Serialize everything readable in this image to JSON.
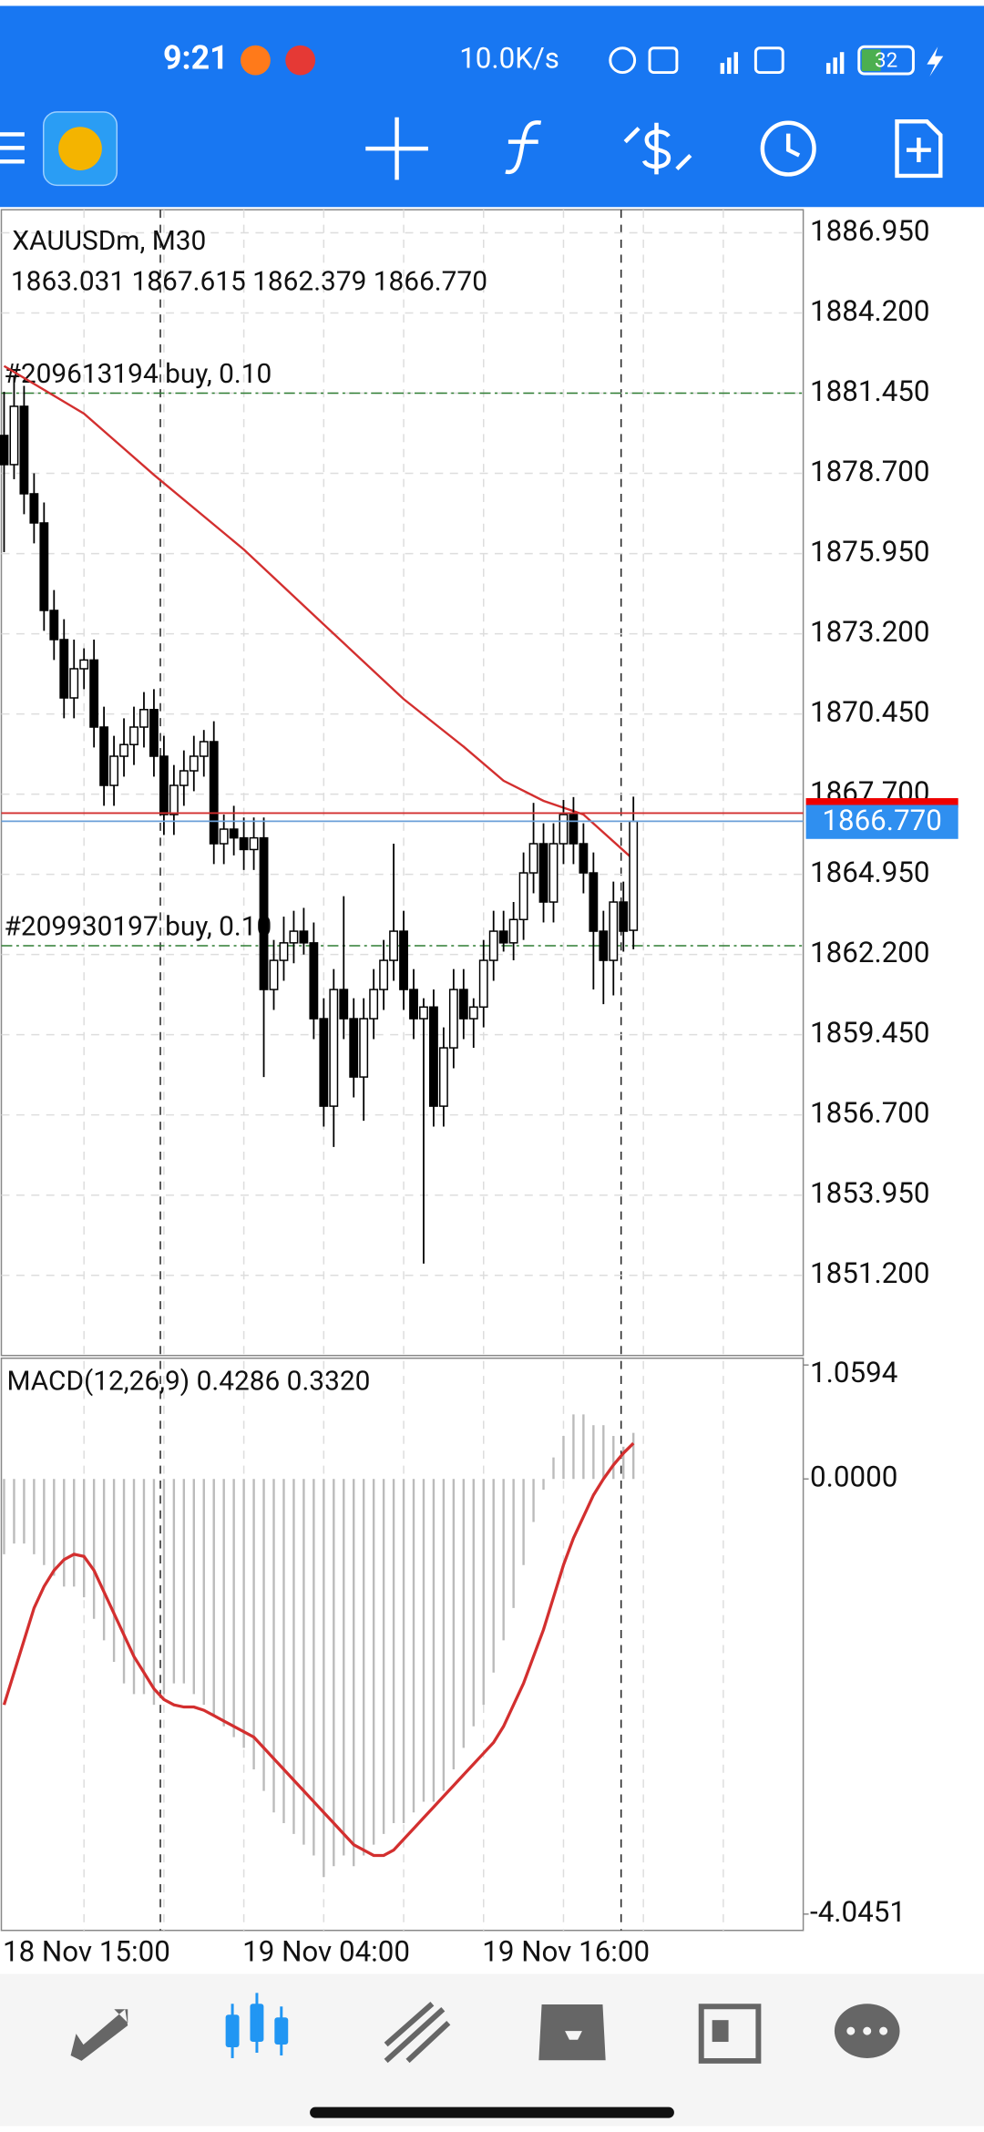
{
  "status_bar": {
    "time": "9:21",
    "speed": "10.0K/s",
    "battery": "32"
  },
  "chart": {
    "symbol": "XAUUSDm, M30",
    "ohlc_label": "1863.031 1867.615 1862.379 1866.770",
    "price_axis": {
      "ylim": [
        1848.45,
        1887.74
      ],
      "ticks": [
        {
          "value": 1886.95,
          "label": "1886.950"
        },
        {
          "value": 1884.2,
          "label": "1884.200"
        },
        {
          "value": 1881.45,
          "label": "1881.450"
        },
        {
          "value": 1878.7,
          "label": "1878.700"
        },
        {
          "value": 1875.95,
          "label": "1875.950"
        },
        {
          "value": 1873.2,
          "label": "1873.200"
        },
        {
          "value": 1870.45,
          "label": "1870.450"
        },
        {
          "value": 1867.7,
          "label": "1867.700"
        },
        {
          "value": 1864.95,
          "label": "1864.950"
        },
        {
          "value": 1862.2,
          "label": "1862.200"
        },
        {
          "value": 1859.45,
          "label": "1859.450"
        },
        {
          "value": 1856.7,
          "label": "1856.700"
        },
        {
          "value": 1853.95,
          "label": "1853.950"
        },
        {
          "value": 1851.2,
          "label": "1851.200"
        }
      ]
    },
    "bid": {
      "value": 1866.77,
      "label": "1866.770"
    },
    "ask": 1867.05,
    "orders": [
      {
        "label": "#209613194 buy, 0.10",
        "price": 1881.45
      },
      {
        "label": "#209930197 buy, 0.10",
        "price": 1862.5
      }
    ],
    "time_axis": [
      {
        "bar": 0,
        "label": "18 Nov 15:00"
      },
      {
        "bar": 24,
        "label": "19 Nov 04:00"
      },
      {
        "bar": 48,
        "label": "19 Nov 16:00"
      }
    ],
    "candles": [
      [
        1880,
        1881.5,
        1876,
        1879
      ],
      [
        1879,
        1882,
        1878.5,
        1881
      ],
      [
        1881,
        1881.7,
        1877.3,
        1878
      ],
      [
        1878,
        1878.7,
        1876.3,
        1877
      ],
      [
        1877,
        1877.7,
        1873.3,
        1874
      ],
      [
        1874,
        1874.7,
        1872.3,
        1873
      ],
      [
        1873,
        1873.7,
        1870.3,
        1871
      ],
      [
        1871,
        1873,
        1870.3,
        1872
      ],
      [
        1872,
        1872.7,
        1871.3,
        1872.3
      ],
      [
        1872.3,
        1873,
        1869.3,
        1870
      ],
      [
        1870,
        1870.7,
        1867.3,
        1868
      ],
      [
        1868,
        1869.7,
        1867.3,
        1869
      ],
      [
        1869,
        1870.3,
        1868.3,
        1869.4
      ],
      [
        1869.4,
        1870.7,
        1868.7,
        1870
      ],
      [
        1870,
        1871.2,
        1869.3,
        1870.6
      ],
      [
        1870.6,
        1871.3,
        1868.3,
        1869
      ],
      [
        1869,
        1869.7,
        1866.3,
        1867
      ],
      [
        1867,
        1868.7,
        1866.3,
        1868
      ],
      [
        1868,
        1869.2,
        1867.3,
        1868.5
      ],
      [
        1868.5,
        1869.7,
        1867.8,
        1869
      ],
      [
        1869,
        1869.9,
        1868.3,
        1869.5
      ],
      [
        1869.5,
        1870.2,
        1865.3,
        1866
      ],
      [
        1866,
        1867,
        1865.3,
        1866.5
      ],
      [
        1866.5,
        1867.3,
        1865.6,
        1866.2
      ],
      [
        1866.2,
        1866.9,
        1865.1,
        1865.8
      ],
      [
        1865.8,
        1866.9,
        1865.1,
        1866.2
      ],
      [
        1866.2,
        1866.9,
        1858,
        1861
      ],
      [
        1861,
        1862.7,
        1860.3,
        1862
      ],
      [
        1862,
        1863.5,
        1861.3,
        1862.6
      ],
      [
        1862.6,
        1863.7,
        1861.9,
        1863
      ],
      [
        1863,
        1863.8,
        1862.2,
        1862.6
      ],
      [
        1862.6,
        1863.3,
        1859.3,
        1860
      ],
      [
        1860,
        1860.7,
        1856.3,
        1857
      ],
      [
        1857,
        1861.7,
        1855.6,
        1861
      ],
      [
        1861,
        1864.2,
        1859.3,
        1860
      ],
      [
        1860,
        1860.7,
        1857.3,
        1858
      ],
      [
        1858,
        1860.7,
        1856.5,
        1860
      ],
      [
        1860,
        1861.7,
        1859.3,
        1861
      ],
      [
        1861,
        1862.7,
        1860.3,
        1862
      ],
      [
        1862,
        1866,
        1861.3,
        1863
      ],
      [
        1863,
        1863.7,
        1860.3,
        1861
      ],
      [
        1861,
        1861.7,
        1859.3,
        1860
      ],
      [
        1860,
        1860.7,
        1851.6,
        1860.4
      ],
      [
        1860.4,
        1861,
        1856.3,
        1857
      ],
      [
        1857,
        1859.7,
        1856.3,
        1859
      ],
      [
        1859,
        1861.7,
        1858.3,
        1861
      ],
      [
        1861,
        1861.7,
        1859.3,
        1860
      ],
      [
        1860,
        1860.7,
        1859,
        1860.4
      ],
      [
        1860.4,
        1862.7,
        1859.7,
        1862
      ],
      [
        1862,
        1863.7,
        1861.3,
        1863
      ],
      [
        1863,
        1863.7,
        1862.3,
        1862.6
      ],
      [
        1862.6,
        1864,
        1862,
        1863.4
      ],
      [
        1863.4,
        1865.7,
        1862.7,
        1865
      ],
      [
        1865,
        1867.4,
        1864.3,
        1866
      ],
      [
        1866,
        1866.7,
        1863.3,
        1864
      ],
      [
        1864,
        1866.7,
        1863.3,
        1866
      ],
      [
        1866,
        1867.5,
        1865.3,
        1867
      ],
      [
        1867,
        1867.6,
        1865.3,
        1866
      ],
      [
        1866,
        1866.7,
        1864.3,
        1865
      ],
      [
        1865,
        1865.7,
        1861,
        1863
      ],
      [
        1863,
        1863.7,
        1860.5,
        1862
      ],
      [
        1862,
        1864.7,
        1860.8,
        1864
      ],
      [
        1864,
        1864.7,
        1862.3,
        1863
      ],
      [
        1863.031,
        1867.615,
        1862.379,
        1866.77
      ]
    ],
    "ma": {
      "bars": [
        0,
        8,
        15,
        24,
        32,
        40,
        46,
        50,
        54,
        58,
        63
      ],
      "values": [
        1882.38,
        1880.75,
        1878.65,
        1876.09,
        1873.52,
        1870.96,
        1869.33,
        1868.16,
        1867.47,
        1867.0,
        1865.46
      ]
    }
  },
  "macd": {
    "label": "MACD(12,26,9) 0.4286 0.3320",
    "ylim": [
      -4.0451,
      1.0594
    ],
    "ticks": [
      {
        "value": 1.0594,
        "label": "1.0594"
      },
      {
        "value": 0,
        "label": "0.0000"
      },
      {
        "value": -4.0451,
        "label": "-4.0451"
      }
    ],
    "histogram": [
      -0.7,
      -0.6,
      -0.6,
      -0.7,
      -0.8,
      -0.9,
      -1.0,
      -1.0,
      -1.1,
      -1.3,
      -1.5,
      -1.7,
      -1.9,
      -2.0,
      -2.0,
      -2.1,
      -2.0,
      -1.9,
      -1.9,
      -2.0,
      -2.1,
      -2.2,
      -2.3,
      -2.4,
      -2.5,
      -2.7,
      -2.9,
      -3.1,
      -3.2,
      -3.3,
      -3.4,
      -3.5,
      -3.7,
      -3.6,
      -3.5,
      -3.6,
      -3.5,
      -3.4,
      -3.3,
      -3.2,
      -3.2,
      -3.1,
      -3.0,
      -3.0,
      -2.9,
      -2.7,
      -2.5,
      -2.3,
      -2.1,
      -1.8,
      -1.5,
      -1.2,
      -0.8,
      -0.4,
      -0.1,
      0.2,
      0.4,
      0.6,
      0.6,
      0.5,
      0.5,
      0.4,
      0.3,
      0.4286
    ],
    "signal": [
      -2.1,
      -1.8,
      -1.5,
      -1.2,
      -1.0,
      -0.85,
      -0.75,
      -0.7,
      -0.72,
      -0.85,
      -1.05,
      -1.25,
      -1.45,
      -1.65,
      -1.8,
      -1.95,
      -2.05,
      -2.1,
      -2.12,
      -2.12,
      -2.15,
      -2.2,
      -2.25,
      -2.3,
      -2.35,
      -2.4,
      -2.5,
      -2.6,
      -2.7,
      -2.8,
      -2.9,
      -3.0,
      -3.1,
      -3.2,
      -3.3,
      -3.4,
      -3.45,
      -3.5,
      -3.5,
      -3.45,
      -3.35,
      -3.25,
      -3.15,
      -3.05,
      -2.95,
      -2.85,
      -2.75,
      -2.65,
      -2.55,
      -2.45,
      -2.3,
      -2.1,
      -1.9,
      -1.65,
      -1.4,
      -1.1,
      -0.8,
      -0.55,
      -0.35,
      -0.15,
      0.0,
      0.13,
      0.24,
      0.332
    ]
  }
}
